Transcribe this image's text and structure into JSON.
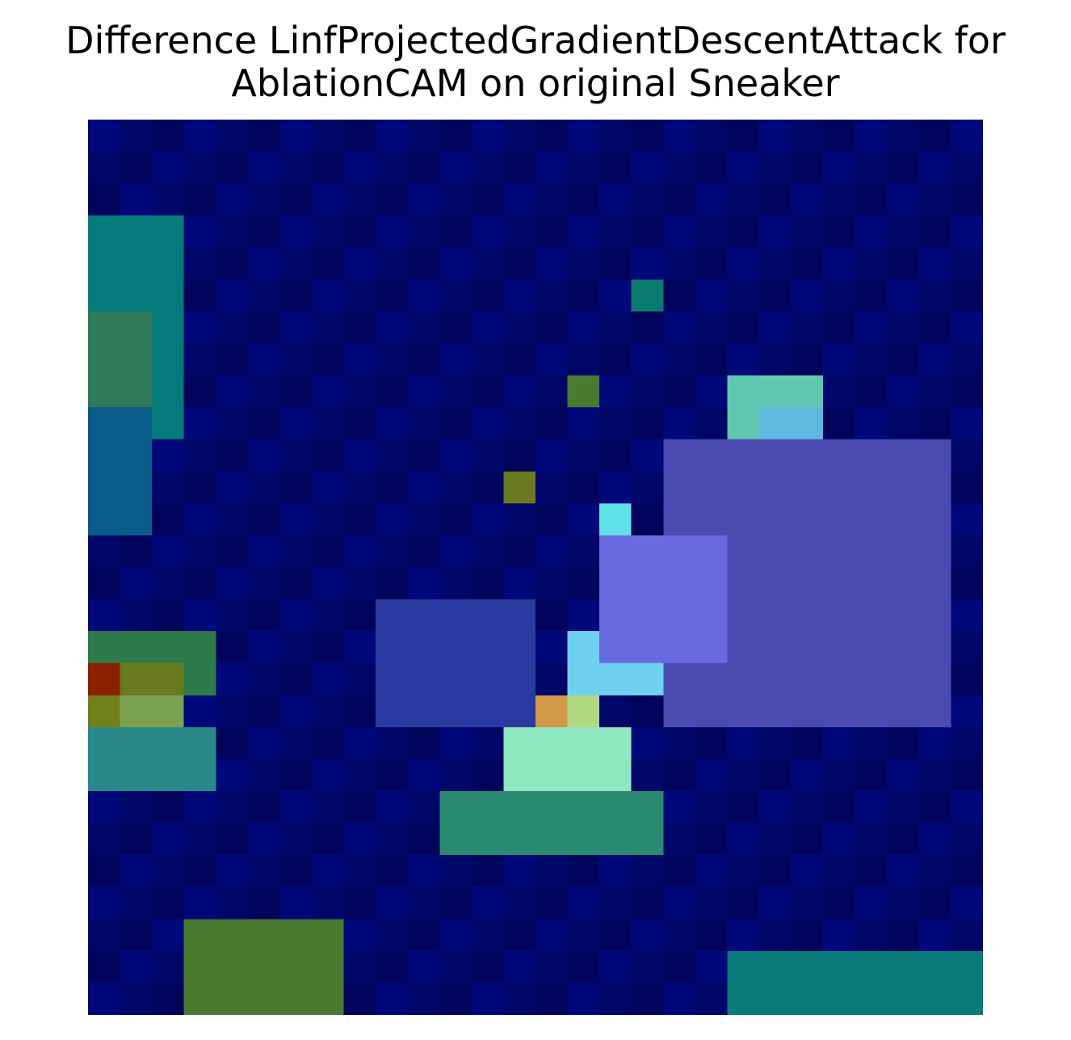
{
  "figure": {
    "title_line1": "Difference LinfProjectedGradientDescentAttack for",
    "title_line2": "AblationCAM on original Sneaker"
  },
  "image": {
    "description": "Fashion-MNIST sneaker overlaid with jet-colormap attribution difference heatmap",
    "grid_rows": 28,
    "grid_cols": 28
  }
}
